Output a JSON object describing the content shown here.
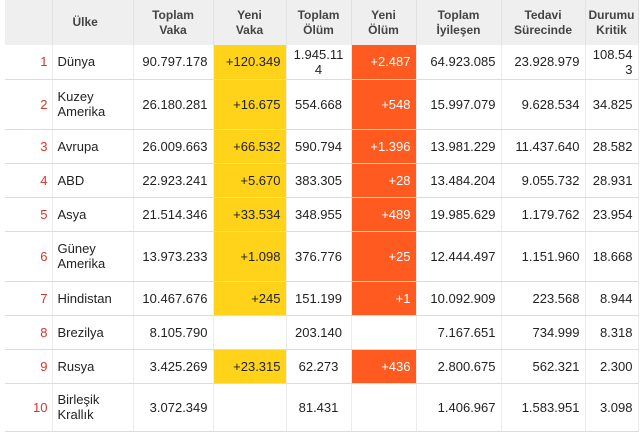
{
  "headers": {
    "country": "Ülke",
    "total_cases": [
      "Toplam",
      "Vaka"
    ],
    "new_cases": [
      "Yeni",
      "Vaka"
    ],
    "total_deaths": [
      "Toplam",
      "Ölüm"
    ],
    "new_deaths": [
      "Yeni",
      "Ölüm"
    ],
    "total_recovered": [
      "Toplam",
      "İyileşen"
    ],
    "active": [
      "Tedavi",
      "Sürecinde"
    ],
    "critical": [
      "Durumu",
      "Kritik"
    ]
  },
  "rows": [
    {
      "rank": "1",
      "country": "Dünya",
      "total_cases": "90.797.178",
      "new_cases": "+120.349",
      "total_deaths": "1.945.114",
      "new_deaths": "+2.487",
      "total_recovered": "64.923.085",
      "active": "23.928.979",
      "critical": "108.543"
    },
    {
      "rank": "2",
      "country": "Kuzey Amerika",
      "total_cases": "26.180.281",
      "new_cases": "+16.675",
      "total_deaths": "554.668",
      "new_deaths": "+548",
      "total_recovered": "15.997.079",
      "active": "9.628.534",
      "critical": "34.825"
    },
    {
      "rank": "3",
      "country": "Avrupa",
      "total_cases": "26.009.663",
      "new_cases": "+66.532",
      "total_deaths": "590.794",
      "new_deaths": "+1.396",
      "total_recovered": "13.981.229",
      "active": "11.437.640",
      "critical": "28.582"
    },
    {
      "rank": "4",
      "country": "ABD",
      "total_cases": "22.923.241",
      "new_cases": "+5.670",
      "total_deaths": "383.305",
      "new_deaths": "+28",
      "total_recovered": "13.484.204",
      "active": "9.055.732",
      "critical": "28.931"
    },
    {
      "rank": "5",
      "country": "Asya",
      "total_cases": "21.514.346",
      "new_cases": "+33.534",
      "total_deaths": "348.955",
      "new_deaths": "+489",
      "total_recovered": "19.985.629",
      "active": "1.179.762",
      "critical": "23.954"
    },
    {
      "rank": "6",
      "country": "Güney Amerika",
      "total_cases": "13.973.233",
      "new_cases": "+1.098",
      "total_deaths": "376.776",
      "new_deaths": "+25",
      "total_recovered": "12.444.497",
      "active": "1.151.960",
      "critical": "18.668"
    },
    {
      "rank": "7",
      "country": "Hindistan",
      "total_cases": "10.467.676",
      "new_cases": "+245",
      "total_deaths": "151.199",
      "new_deaths": "+1",
      "total_recovered": "10.092.909",
      "active": "223.568",
      "critical": "8.944"
    },
    {
      "rank": "8",
      "country": "Brezilya",
      "total_cases": "8.105.790",
      "new_cases": "",
      "total_deaths": "203.140",
      "new_deaths": "",
      "total_recovered": "7.167.651",
      "active": "734.999",
      "critical": "8.318"
    },
    {
      "rank": "9",
      "country": "Rusya",
      "total_cases": "3.425.269",
      "new_cases": "+23.315",
      "total_deaths": "62.273",
      "new_deaths": "+436",
      "total_recovered": "2.800.675",
      "active": "562.321",
      "critical": "2.300"
    },
    {
      "rank": "10",
      "country": "Birleşik Krallık",
      "total_cases": "3.072.349",
      "new_cases": "",
      "total_deaths": "81.431",
      "new_deaths": "",
      "total_recovered": "1.406.967",
      "active": "1.583.951",
      "critical": "3.098"
    }
  ],
  "colors": {
    "new_cases_bg": "#ffd31a",
    "new_deaths_bg": "#ff5a1f",
    "rank_text": "#d9342b",
    "header_bg": "#efefef"
  }
}
